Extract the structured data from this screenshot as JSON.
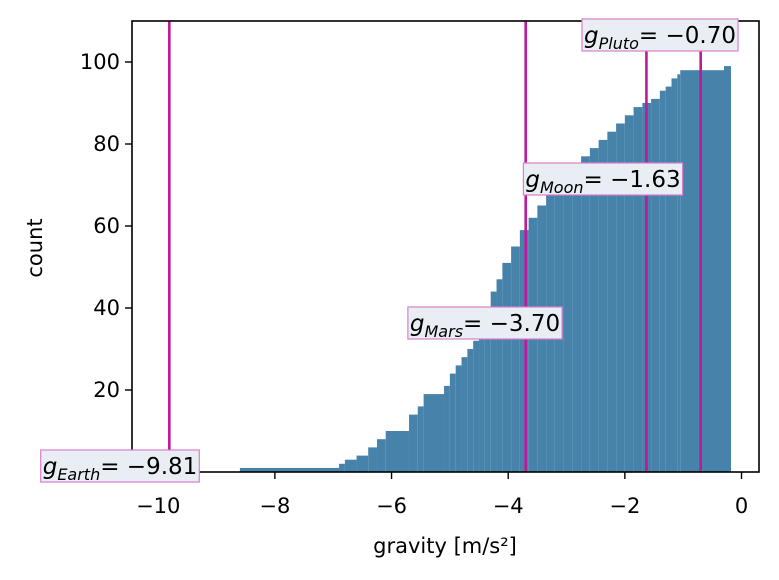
{
  "chart_data": {
    "type": "area",
    "description_kind": "cumulative histogram (step)",
    "xlabel": "gravity [m/s²]",
    "ylabel": "count",
    "xlim": [
      -10.45,
      0.3
    ],
    "ylim": [
      0,
      110
    ],
    "x_ticks": [
      -10,
      -8,
      -6,
      -4,
      -2,
      0
    ],
    "y_ticks": [
      0,
      20,
      40,
      60,
      80,
      100
    ],
    "x_tick_labels": [
      "−10",
      "−8",
      "−6",
      "−4",
      "−2",
      "0"
    ],
    "y_tick_labels": [
      "0",
      "20",
      "40",
      "60",
      "80",
      "100"
    ],
    "grid": false,
    "bar_color": "#4682aa",
    "marker_color": "#c0189a",
    "label_border_color": "#d97fcb",
    "label_fill_color": "#e8eef4",
    "steps": [
      [
        -8.7,
        0
      ],
      [
        -8.6,
        1
      ],
      [
        -6.9,
        2
      ],
      [
        -6.8,
        3
      ],
      [
        -6.6,
        4
      ],
      [
        -6.4,
        6
      ],
      [
        -6.25,
        8
      ],
      [
        -6.1,
        10
      ],
      [
        -5.7,
        14
      ],
      [
        -5.55,
        16
      ],
      [
        -5.45,
        19
      ],
      [
        -5.1,
        21
      ],
      [
        -5.0,
        24
      ],
      [
        -4.9,
        26
      ],
      [
        -4.8,
        28
      ],
      [
        -4.7,
        30
      ],
      [
        -4.6,
        32
      ],
      [
        -4.5,
        36
      ],
      [
        -4.4,
        40
      ],
      [
        -4.3,
        44
      ],
      [
        -4.2,
        47
      ],
      [
        -4.1,
        51
      ],
      [
        -3.95,
        55
      ],
      [
        -3.8,
        59
      ],
      [
        -3.65,
        62
      ],
      [
        -3.5,
        65
      ],
      [
        -3.35,
        68
      ],
      [
        -3.2,
        70
      ],
      [
        -3.05,
        72
      ],
      [
        -2.9,
        75
      ],
      [
        -2.75,
        77
      ],
      [
        -2.6,
        79
      ],
      [
        -2.45,
        81
      ],
      [
        -2.3,
        83
      ],
      [
        -2.15,
        85
      ],
      [
        -2.0,
        87
      ],
      [
        -1.85,
        89
      ],
      [
        -1.7,
        90
      ],
      [
        -1.55,
        91
      ],
      [
        -1.4,
        93
      ],
      [
        -1.3,
        94
      ],
      [
        -1.2,
        96
      ],
      [
        -1.1,
        97
      ],
      [
        -1.05,
        98
      ],
      [
        -0.3,
        99
      ],
      [
        -0.18,
        99
      ]
    ],
    "annotations": [
      {
        "body": "Earth",
        "value": -9.81,
        "text": "= −9.81"
      },
      {
        "body": "Mars",
        "value": -3.7,
        "text": "= −3.70"
      },
      {
        "body": "Moon",
        "value": -1.63,
        "text": "= −1.63"
      },
      {
        "body": "Pluto",
        "value": -0.7,
        "text": "= −0.70"
      }
    ]
  }
}
